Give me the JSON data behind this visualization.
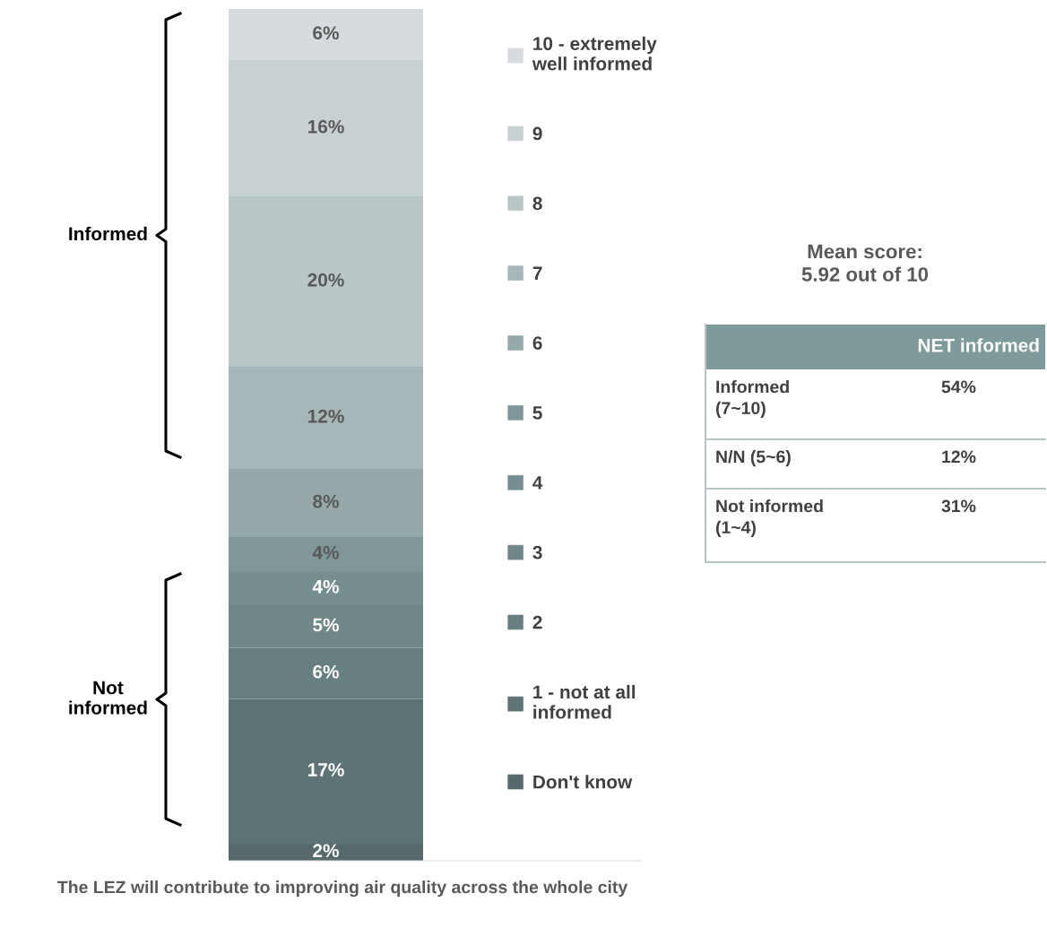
{
  "chart_data": [
    {
      "type": "bar",
      "stacked": true,
      "categories": [
        null
      ],
      "xlabel": "The LEZ will contribute to improving air quality across the whole city",
      "ylim": [
        0,
        100
      ],
      "tick_labels": false,
      "legend": "right",
      "series": [
        {
          "name": "Don't know",
          "color": "#566a6c",
          "values": [
            2
          ],
          "value_labels": [
            "2%"
          ]
        },
        {
          "name": "1 - not at all\ninformed",
          "color": "#5e7375",
          "values": [
            17
          ],
          "value_labels": [
            "17%"
          ]
        },
        {
          "name": "2",
          "color": "#687f81",
          "values": [
            6
          ],
          "value_labels": [
            "6%"
          ]
        },
        {
          "name": "3",
          "color": "#6f8789",
          "values": [
            5
          ],
          "value_labels": [
            "5%"
          ]
        },
        {
          "name": "4",
          "color": "#768e90",
          "values": [
            4
          ],
          "value_labels": [
            "4%"
          ]
        },
        {
          "name": "5",
          "color": "#7f9799",
          "values": [
            4
          ],
          "value_labels": [
            "4%"
          ]
        },
        {
          "name": "6",
          "color": "#96a9aa",
          "values": [
            8
          ],
          "value_labels": [
            "8%"
          ]
        },
        {
          "name": "7",
          "color": "#a7b6b8",
          "values": [
            12
          ],
          "value_labels": [
            "12%"
          ]
        },
        {
          "name": "8",
          "color": "#b9c6c7",
          "values": [
            20
          ],
          "value_labels": [
            "20%"
          ]
        },
        {
          "name": "9",
          "color": "#c8d1d2",
          "values": [
            16
          ],
          "value_labels": [
            "16%"
          ]
        },
        {
          "name": "10 - extremely\nwell informed",
          "color": "#d6dcde",
          "values": [
            6
          ],
          "value_labels": [
            "6%"
          ]
        }
      ],
      "annotations": [
        "Informed",
        "Not\ninformed"
      ]
    },
    {
      "type": "other",
      "title": "Mean score:\n5.92 out of 10",
      "subtitle": "NET informed",
      "color": "#7f9a9b",
      "categories": [
        "Informed\n(7~10)",
        "N/N (5~6)",
        "Not informed\n(1~4)"
      ],
      "value_labels": [
        "54%",
        "12%",
        "31%"
      ]
    }
  ]
}
